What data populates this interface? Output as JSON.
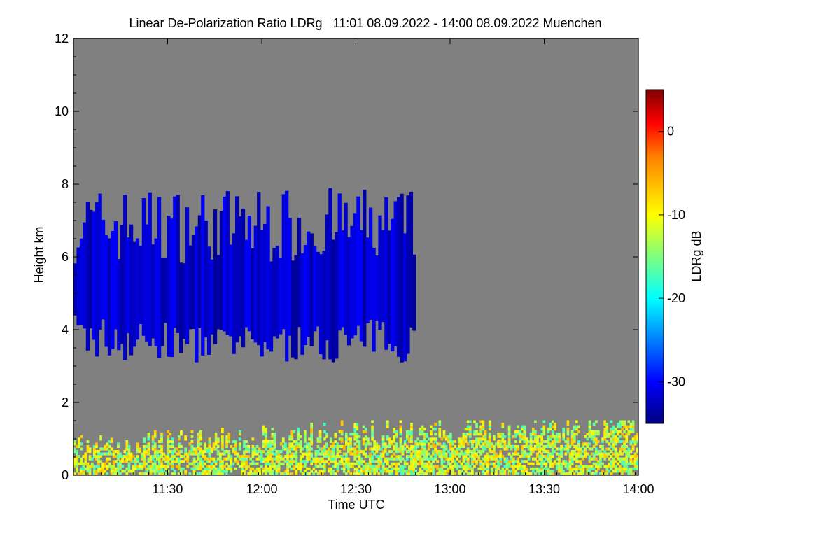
{
  "chart_data": {
    "type": "heatmap",
    "title": "Linear De-Polarization Ratio LDRg   11:01 08.09.2022 - 14:00 08.09.2022 Muenchen",
    "xlabel": "Time UTC",
    "ylabel": "Height km",
    "colorbar_label": "LDRg dB",
    "x_range": [
      "11:01",
      "14:00"
    ],
    "y_range": [
      0,
      12
    ],
    "x_ticks": [
      "11:30",
      "12:00",
      "12:30",
      "13:00",
      "13:30",
      "14:00"
    ],
    "y_ticks": [
      "0",
      "2",
      "4",
      "6",
      "8",
      "10",
      "12"
    ],
    "colorbar_range": [
      -35,
      5
    ],
    "colorbar_ticks": [
      "0",
      "-10",
      "-20",
      "-30"
    ],
    "colorscale": [
      "#00007f",
      "#0000ff",
      "#00ffff",
      "#ffff00",
      "#ff7f00",
      "#ff0000",
      "#7f0000"
    ],
    "background_color": "#808080",
    "features": [
      {
        "description": "cloud layer",
        "time_start": "11:01",
        "time_end": "12:49",
        "height_bottom_km": 2.5,
        "height_top_km": 7.9,
        "ldr_db": -32
      },
      {
        "description": "boundary layer aerosol",
        "time_start": "11:01",
        "time_end": "14:00",
        "height_bottom_km": 0,
        "height_top_km": 1.5,
        "ldr_db": -12
      }
    ]
  }
}
